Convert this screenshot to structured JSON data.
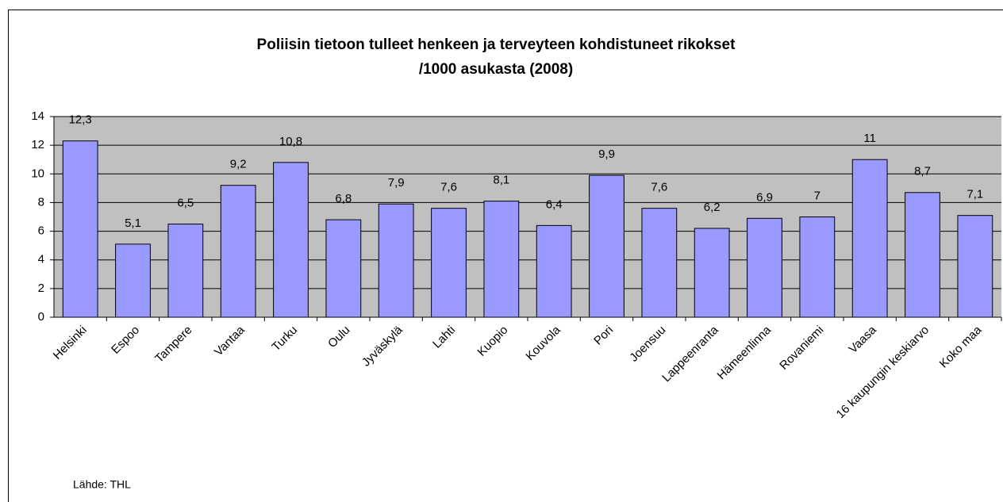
{
  "chart_data": {
    "type": "bar",
    "title": [
      "Poliisin tietoon tulleet henkeen ja terveyteen kohdistuneet rikokset",
      "/1000 asukasta (2008)"
    ],
    "source": "Lähde: THL",
    "categories": [
      "Helsinki",
      "Espoo",
      "Tampere",
      "Vantaa",
      "Turku",
      "Oulu",
      "Jyväskylä",
      "Lahti",
      "Kuopio",
      "Kouvola",
      "Pori",
      "Joensuu",
      "Lappeenranta",
      "Hämeenlinna",
      "Rovaniemi",
      "Vaasa",
      "16 kaupungin keskiarvo",
      "Koko maa"
    ],
    "values": [
      12.3,
      5.1,
      6.5,
      9.2,
      10.8,
      6.8,
      7.9,
      7.6,
      8.1,
      6.4,
      9.9,
      7.6,
      6.2,
      6.9,
      7,
      11,
      8.7,
      7.1
    ],
    "value_labels": [
      "12,3",
      "5,1",
      "6,5",
      "9,2",
      "10,8",
      "6,8",
      "7,9",
      "7,6",
      "8,1",
      "6,4",
      "9,9",
      "7,6",
      "6,2",
      "6,9",
      "7",
      "11",
      "8,7",
      "7,1"
    ],
    "color": "#9999ff",
    "ylim": [
      0,
      14
    ],
    "yticks": [
      0,
      2,
      4,
      6,
      8,
      10,
      12,
      14
    ],
    "grid": true
  }
}
